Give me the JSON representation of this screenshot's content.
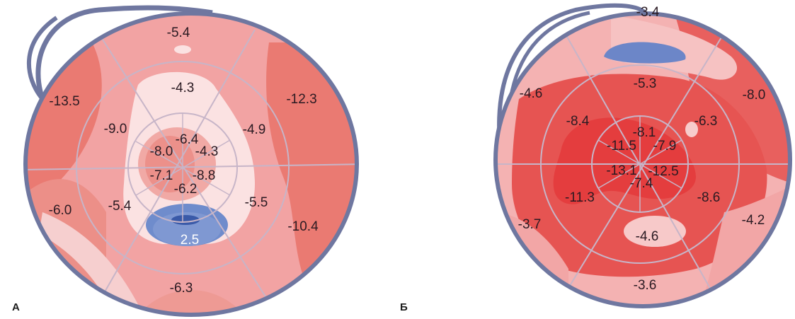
{
  "colors": {
    "pink_light": "#f4c3c3",
    "pink_mid": "#f2a3a3",
    "red_soft": "#ea7a72",
    "red_deep": "#e65452",
    "red_strong": "#e84a4a",
    "white_pink": "#fbe2e2",
    "blue": "#6c86c8",
    "blue_dark": "#3a5aa8",
    "ring": "#6f77a0",
    "grid": "#c7b5c8"
  },
  "panels": [
    {
      "letter": "А",
      "segments": {
        "basal": [
          "-5.4",
          "-12.3",
          "-10.4",
          "-6.3",
          "-6.0",
          "-13.5"
        ],
        "mid": [
          "-4.3",
          "-4.9",
          "-5.5",
          "2.5",
          "-5.4",
          "-9.0"
        ],
        "apical": [
          "-6.4",
          "-4.3",
          "-8.8",
          "-6.2",
          "-7.1",
          "-8.0"
        ]
      }
    },
    {
      "letter": "Б",
      "segments": {
        "basal": [
          "-3.4",
          "-8.0",
          "-4.2",
          "-3.6",
          "-3.7",
          "-4.6"
        ],
        "mid": [
          "-5.3",
          "-6.3",
          "-8.6",
          "-4.6",
          "-11.3",
          "-8.4"
        ],
        "apical": [
          "-8.1",
          "-7.9",
          "-12.5",
          "-7.4",
          "-13.1",
          "-11.5"
        ]
      }
    }
  ]
}
